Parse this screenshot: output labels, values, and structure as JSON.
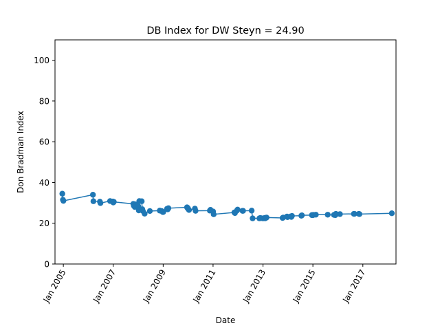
{
  "chart_data": {
    "type": "line",
    "title": "DB Index for DW Steyn = 24.90",
    "xlabel": "Date",
    "ylabel": "Don Bradman Index",
    "xlim": [
      "2004-09-01",
      "2018-05-01"
    ],
    "ylim": [
      0,
      110
    ],
    "xticks": [
      {
        "date": "2005-01-01",
        "label": "Jan 2005"
      },
      {
        "date": "2007-01-01",
        "label": "Jan 2007"
      },
      {
        "date": "2009-01-01",
        "label": "Jan 2009"
      },
      {
        "date": "2011-01-01",
        "label": "Jan 2011"
      },
      {
        "date": "2013-01-01",
        "label": "Jan 2013"
      },
      {
        "date": "2015-01-01",
        "label": "Jan 2015"
      },
      {
        "date": "2017-01-01",
        "label": "Jan 2017"
      }
    ],
    "yticks": [
      0,
      20,
      40,
      60,
      80,
      100
    ],
    "grid": false,
    "color": "#1f77b4",
    "series": [
      {
        "x": [
          "2004-12-17",
          "2004-12-26",
          "2005-01-02",
          "2006-03-10",
          "2006-03-17",
          "2006-06-20",
          "2006-06-28",
          "2006-11-16",
          "2006-12-26",
          "2007-01-02",
          "2007-01-10",
          "2007-10-22",
          "2007-10-30",
          "2007-11-12",
          "2007-11-20",
          "2008-01-02",
          "2008-01-10",
          "2008-01-18",
          "2008-02-22",
          "2008-03-01",
          "2008-03-10",
          "2008-04-05",
          "2008-06-20",
          "2008-11-12",
          "2008-12-10",
          "2008-12-26",
          "2009-01-02",
          "2009-02-26",
          "2009-03-08",
          "2009-03-19",
          "2009-12-16",
          "2009-12-26",
          "2010-01-03",
          "2010-01-14",
          "2010-04-10",
          "2010-04-20",
          "2010-11-15",
          "2010-11-24",
          "2011-01-01",
          "2011-01-10",
          "2011-11-09",
          "2011-11-17",
          "2011-12-15",
          "2011-12-26",
          "2012-03-07",
          "2012-03-15",
          "2012-07-19",
          "2012-08-02",
          "2012-11-09",
          "2012-11-22",
          "2012-11-30",
          "2013-01-02",
          "2013-01-25",
          "2013-02-01",
          "2013-02-14",
          "2013-02-22",
          "2013-10-14",
          "2013-10-23",
          "2013-12-18",
          "2013-12-26",
          "2014-02-12",
          "2014-02-20",
          "2014-03-01",
          "2014-07-16",
          "2014-07-24",
          "2014-12-17",
          "2015-01-02",
          "2015-01-07",
          "2015-02-13",
          "2015-08-06",
          "2015-11-05",
          "2015-11-25",
          "2015-12-03",
          "2016-02-01",
          "2016-08-22",
          "2016-08-31",
          "2016-11-03",
          "2016-11-12",
          "2018-03-01"
        ],
        "y": [
          34.5,
          31.5,
          31.0,
          34.0,
          30.8,
          30.6,
          29.9,
          30.9,
          30.7,
          30.2,
          30.5,
          29.5,
          28.6,
          28.0,
          29.3,
          28.4,
          26.3,
          30.9,
          30.8,
          26.9,
          26.0,
          24.7,
          26.0,
          26.2,
          26.0,
          25.5,
          25.5,
          27.1,
          26.8,
          27.4,
          27.8,
          27.5,
          27.0,
          26.5,
          27.2,
          26.1,
          26.2,
          26.6,
          25.8,
          24.4,
          25.3,
          25.0,
          26.2,
          26.7,
          26.1,
          26.1,
          26.2,
          22.4,
          22.4,
          22.6,
          22.5,
          22.4,
          22.6,
          22.4,
          22.7,
          22.8,
          22.6,
          22.8,
          23.3,
          23.0,
          23.4,
          23.1,
          23.6,
          23.7,
          23.9,
          24.0,
          24.0,
          24.1,
          24.2,
          24.2,
          24.1,
          24.0,
          24.6,
          24.5,
          24.6,
          24.6,
          24.6,
          24.5,
          24.9
        ]
      }
    ]
  }
}
